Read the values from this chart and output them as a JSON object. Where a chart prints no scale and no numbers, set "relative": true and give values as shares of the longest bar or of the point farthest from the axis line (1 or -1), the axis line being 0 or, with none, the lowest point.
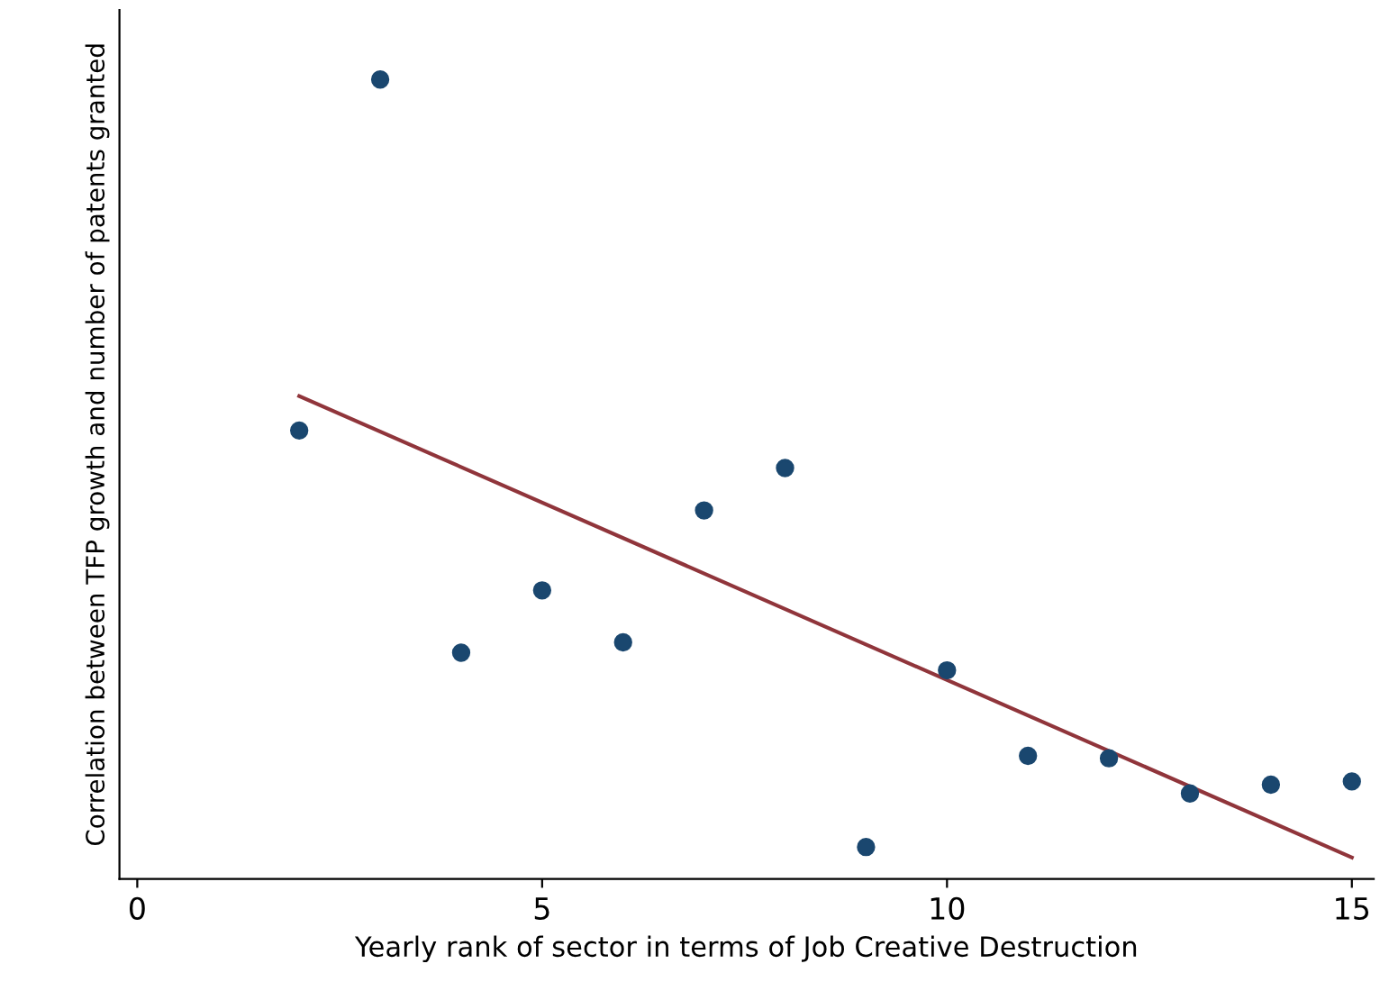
{
  "chart_data": {
    "type": "scatter",
    "xlabel": "Yearly rank of sector in terms of Job Creative Destruction",
    "ylabel": "Correlation between TFP growth and number of patents granted",
    "relative": true,
    "xlim": [
      -0.22,
      15.27
    ],
    "xticks": [
      0,
      5,
      10,
      15
    ],
    "series": [
      {
        "marker": "circle",
        "color": "#1a476f",
        "x": [
          2,
          3,
          4,
          5,
          6,
          7,
          8,
          9,
          10,
          11,
          12,
          13,
          14,
          15
        ],
        "values": [
          0.561,
          1,
          0.283,
          0.361,
          0.296,
          0.461,
          0.514,
          0.04,
          0.261,
          0.154,
          0.151,
          0.107,
          0.118,
          0.122
        ]
      },
      {
        "type": "line",
        "marker": "none",
        "color": "#90353b",
        "x": [
          2,
          15
        ],
        "values": [
          0.604,
          0.027
        ]
      }
    ]
  }
}
